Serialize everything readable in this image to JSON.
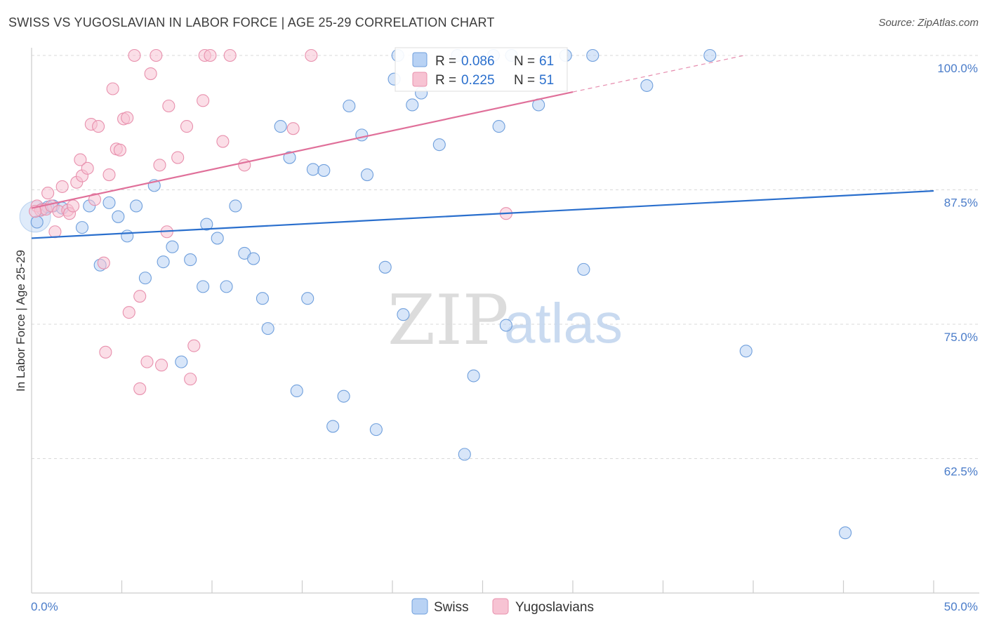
{
  "header": {
    "title": "SWISS VS YUGOSLAVIAN IN LABOR FORCE | AGE 25-29 CORRELATION CHART",
    "source": "Source: ZipAtlas.com"
  },
  "watermark": {
    "part1": "ZIP",
    "part2": "atlas"
  },
  "colors": {
    "swiss_fill": "#b8d2f4",
    "swiss_stroke": "#6f9fdc",
    "swiss_line": "#2a6fcd",
    "yugo_fill": "#f7c3d3",
    "yugo_stroke": "#e890ad",
    "yugo_line": "#e0709a",
    "tick_label": "#4a7cc9",
    "grid": "#d8d8d8"
  },
  "chart_data": {
    "type": "scatter",
    "title": "SWISS VS YUGOSLAVIAN IN LABOR FORCE | AGE 25-29 CORRELATION CHART",
    "xlabel": "",
    "ylabel": "In Labor Force | Age 25-29",
    "xlim": [
      0,
      50
    ],
    "ylim": [
      50,
      100
    ],
    "y_ticks": [
      62.5,
      75.0,
      87.5,
      100.0
    ],
    "y_tick_labels": [
      "62.5%",
      "75.0%",
      "87.5%",
      "100.0%"
    ],
    "x_tick_labels": {
      "min": "0.0%",
      "max": "50.0%"
    },
    "x_minor_ticks": [
      5,
      10,
      15,
      20,
      25,
      30,
      35,
      40,
      45,
      50
    ],
    "grid": true,
    "legend_position": "bottom-center",
    "stats_box": [
      {
        "series": "Swiss",
        "r_label": "R =",
        "r_value": "0.086",
        "n_label": "N =",
        "n_value": "61"
      },
      {
        "series": "Yugoslavians",
        "r_label": "R =",
        "r_value": "0.225",
        "n_label": "N =",
        "n_value": "51"
      }
    ],
    "series": [
      {
        "name": "Swiss",
        "trend": {
          "x": [
            0,
            50
          ],
          "y": [
            83.0,
            87.4
          ]
        },
        "points": [
          [
            0.3,
            84.5
          ],
          [
            0.6,
            85.7
          ],
          [
            0.9,
            85.9
          ],
          [
            1.2,
            86.0
          ],
          [
            1.7,
            85.8
          ],
          [
            2.8,
            84.0
          ],
          [
            3.2,
            86.0
          ],
          [
            3.8,
            80.5
          ],
          [
            4.3,
            86.3
          ],
          [
            4.8,
            85.0
          ],
          [
            5.3,
            83.2
          ],
          [
            5.8,
            86.0
          ],
          [
            6.3,
            79.3
          ],
          [
            6.8,
            87.9
          ],
          [
            7.3,
            80.8
          ],
          [
            7.8,
            82.2
          ],
          [
            8.3,
            71.5
          ],
          [
            8.8,
            81.0
          ],
          [
            9.5,
            78.5
          ],
          [
            9.7,
            84.3
          ],
          [
            10.3,
            83.0
          ],
          [
            10.8,
            78.5
          ],
          [
            11.3,
            86.0
          ],
          [
            11.8,
            81.6
          ],
          [
            12.3,
            81.1
          ],
          [
            12.8,
            77.4
          ],
          [
            13.1,
            74.6
          ],
          [
            13.8,
            93.4
          ],
          [
            14.3,
            90.5
          ],
          [
            14.7,
            68.8
          ],
          [
            15.3,
            77.4
          ],
          [
            15.6,
            89.4
          ],
          [
            16.2,
            89.3
          ],
          [
            16.7,
            65.5
          ],
          [
            17.3,
            68.3
          ],
          [
            17.6,
            95.3
          ],
          [
            18.3,
            92.6
          ],
          [
            18.6,
            88.9
          ],
          [
            19.1,
            65.2
          ],
          [
            19.6,
            80.3
          ],
          [
            20.1,
            97.8
          ],
          [
            20.6,
            75.9
          ],
          [
            20.3,
            100.0
          ],
          [
            21.1,
            95.4
          ],
          [
            21.6,
            96.5
          ],
          [
            22.6,
            91.7
          ],
          [
            23.6,
            100.0
          ],
          [
            24.0,
            62.9
          ],
          [
            24.5,
            70.2
          ],
          [
            25.6,
            100.0
          ],
          [
            25.9,
            93.4
          ],
          [
            26.3,
            74.9
          ],
          [
            26.6,
            100.0
          ],
          [
            28.1,
            95.4
          ],
          [
            29.6,
            100.0
          ],
          [
            30.6,
            80.1
          ],
          [
            31.1,
            100.0
          ],
          [
            34.1,
            97.2
          ],
          [
            37.6,
            100.0
          ],
          [
            39.6,
            72.5
          ],
          [
            45.1,
            55.6
          ]
        ]
      },
      {
        "name": "Yugoslavians",
        "trend": {
          "x": [
            0,
            30
          ],
          "y": [
            85.8,
            96.6
          ],
          "dashed_extension": {
            "x": [
              30,
              39.5
            ],
            "y": [
              96.6,
              100.0
            ]
          }
        },
        "points": [
          [
            0.3,
            86.0
          ],
          [
            0.5,
            85.6
          ],
          [
            0.8,
            85.7
          ],
          [
            0.9,
            87.2
          ],
          [
            1.1,
            86.0
          ],
          [
            1.3,
            83.6
          ],
          [
            1.5,
            85.5
          ],
          [
            1.7,
            87.8
          ],
          [
            2.0,
            85.6
          ],
          [
            2.1,
            85.3
          ],
          [
            2.3,
            86.0
          ],
          [
            2.5,
            88.2
          ],
          [
            2.7,
            90.3
          ],
          [
            2.8,
            88.8
          ],
          [
            3.1,
            89.5
          ],
          [
            3.3,
            93.6
          ],
          [
            3.5,
            86.6
          ],
          [
            3.7,
            93.4
          ],
          [
            4.0,
            80.7
          ],
          [
            4.1,
            72.4
          ],
          [
            4.3,
            88.9
          ],
          [
            4.5,
            96.9
          ],
          [
            4.7,
            91.3
          ],
          [
            4.9,
            91.2
          ],
          [
            5.1,
            94.1
          ],
          [
            5.3,
            94.2
          ],
          [
            5.4,
            76.1
          ],
          [
            5.7,
            100.0
          ],
          [
            6.0,
            77.6
          ],
          [
            6.0,
            69.0
          ],
          [
            6.4,
            71.5
          ],
          [
            6.6,
            98.3
          ],
          [
            6.9,
            100.0
          ],
          [
            7.1,
            89.8
          ],
          [
            7.2,
            71.2
          ],
          [
            7.5,
            83.6
          ],
          [
            7.6,
            95.3
          ],
          [
            8.1,
            90.5
          ],
          [
            8.6,
            93.4
          ],
          [
            8.8,
            69.9
          ],
          [
            9.0,
            73.0
          ],
          [
            9.5,
            95.8
          ],
          [
            9.6,
            100.0
          ],
          [
            9.9,
            100.0
          ],
          [
            10.6,
            92.0
          ],
          [
            11.0,
            100.0
          ],
          [
            11.8,
            89.8
          ],
          [
            14.5,
            93.2
          ],
          [
            15.5,
            100.0
          ],
          [
            26.3,
            85.3
          ],
          [
            0.2,
            85.5
          ]
        ]
      }
    ]
  }
}
